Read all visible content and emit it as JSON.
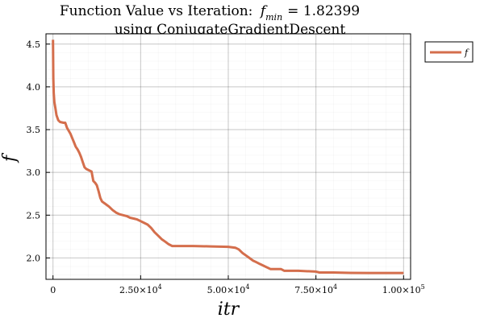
{
  "chart_data": {
    "type": "line",
    "title": "Function Value vs Iteration: f_min = 1.82399 using ConjugateGradientDescent",
    "title_line1": "Function Value vs Iteration:",
    "title_f": "f",
    "title_sub": "min",
    "title_value": "= 1.82399",
    "title_line2": "using ConjugateGradientDescent",
    "xlabel": "itr",
    "ylabel": "f",
    "xlim": [
      -2000,
      102000
    ],
    "ylim": [
      1.75,
      4.62
    ],
    "grid": true,
    "legend_position": "outer-top-right",
    "x_ticks": [
      {
        "value": 0,
        "label": "0"
      },
      {
        "value": 25000,
        "label": "2.50×10",
        "exp": "4"
      },
      {
        "value": 50000,
        "label": "5.00×10",
        "exp": "4"
      },
      {
        "value": 75000,
        "label": "7.50×10",
        "exp": "4"
      },
      {
        "value": 100000,
        "label": "1.00×10",
        "exp": "5"
      }
    ],
    "y_ticks": [
      {
        "value": 2.0,
        "label": "2.0"
      },
      {
        "value": 2.5,
        "label": "2.5"
      },
      {
        "value": 3.0,
        "label": "3.0"
      },
      {
        "value": 3.5,
        "label": "3.5"
      },
      {
        "value": 4.0,
        "label": "4.0"
      },
      {
        "value": 4.5,
        "label": "4.5"
      }
    ],
    "series": [
      {
        "name": "f",
        "color": "#d46e4c",
        "x": [
          0,
          100,
          200,
          400,
          700,
          1000,
          1500,
          2000,
          3000,
          3500,
          4000,
          5000,
          5500,
          6000,
          6500,
          7000,
          7500,
          8000,
          8500,
          9000,
          9500,
          10000,
          11000,
          11500,
          12000,
          12500,
          13000,
          13500,
          14000,
          15000,
          16000,
          17000,
          18000,
          19000,
          20000,
          21000,
          22000,
          23000,
          24000,
          25000,
          26000,
          27000,
          28000,
          29000,
          30000,
          31000,
          32000,
          33000,
          34000,
          35000,
          40000,
          45000,
          50000,
          52000,
          53000,
          54000,
          55000,
          56000,
          57000,
          58000,
          59000,
          60000,
          62000,
          65000,
          66000,
          70000,
          75000,
          76000,
          80000,
          85000,
          90000,
          95000,
          100000
        ],
        "y": [
          4.55,
          4.1,
          3.93,
          3.82,
          3.75,
          3.67,
          3.61,
          3.59,
          3.58,
          3.58,
          3.52,
          3.45,
          3.4,
          3.35,
          3.3,
          3.27,
          3.23,
          3.18,
          3.12,
          3.06,
          3.04,
          3.03,
          3.01,
          2.9,
          2.88,
          2.85,
          2.78,
          2.7,
          2.66,
          2.63,
          2.6,
          2.56,
          2.53,
          2.51,
          2.5,
          2.49,
          2.47,
          2.46,
          2.45,
          2.43,
          2.41,
          2.39,
          2.35,
          2.3,
          2.26,
          2.22,
          2.19,
          2.16,
          2.14,
          2.14,
          2.14,
          2.135,
          2.13,
          2.12,
          2.1,
          2.06,
          2.03,
          2.0,
          1.97,
          1.95,
          1.93,
          1.91,
          1.87,
          1.87,
          1.85,
          1.85,
          1.84,
          1.83,
          1.83,
          1.825,
          1.824,
          1.824,
          1.824
        ]
      }
    ]
  }
}
